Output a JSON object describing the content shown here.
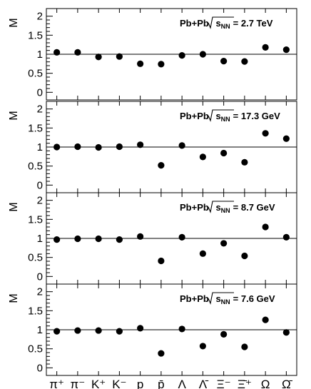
{
  "chart_data": {
    "type": "scatter",
    "shared_categories": [
      "π⁺",
      "π⁻",
      "K⁺",
      "K⁻",
      "p",
      "p̄",
      "Λ",
      "Λ̄",
      "Ξ⁻",
      "Ξ̄⁺",
      "Ω",
      "Ω̄"
    ],
    "ylabel": "M",
    "ylim": [
      -0.2,
      2.2
    ],
    "yticks": [
      "0",
      "0.5",
      "1",
      "1.5",
      "2"
    ],
    "reference_line": 1,
    "panels": [
      {
        "annotation_prefix": "Pb+Pb",
        "annotation_sqrt": "s",
        "annotation_sub": "NN",
        "annotation_value": "= 2.7 TeV",
        "values": [
          1.05,
          1.05,
          0.93,
          0.94,
          0.75,
          0.74,
          0.97,
          1.0,
          0.82,
          0.81,
          1.18,
          1.12
        ]
      },
      {
        "annotation_prefix": "Pb+Pb",
        "annotation_sqrt": "s",
        "annotation_sub": "NN",
        "annotation_value": "= 17.3 GeV",
        "values": [
          1.0,
          1.01,
          0.99,
          1.01,
          1.06,
          0.52,
          1.04,
          0.74,
          0.84,
          0.6,
          1.36,
          1.22
        ]
      },
      {
        "annotation_prefix": "Pb+Pb",
        "annotation_sqrt": "s",
        "annotation_sub": "NN",
        "annotation_value": "= 8.7 GeV",
        "values": [
          0.97,
          0.99,
          0.99,
          0.97,
          1.05,
          0.41,
          1.03,
          0.6,
          0.87,
          0.54,
          1.3,
          1.03
        ]
      },
      {
        "annotation_prefix": "Pb+Pb",
        "annotation_sqrt": "s",
        "annotation_sub": "NN",
        "annotation_value": "= 7.6 GeV",
        "values": [
          0.96,
          0.98,
          0.98,
          0.96,
          1.04,
          0.38,
          1.02,
          0.57,
          0.88,
          0.55,
          1.26,
          0.93
        ]
      }
    ],
    "colors": {
      "marker": "#000000",
      "axis": "#000000",
      "background": "#ffffff"
    }
  }
}
